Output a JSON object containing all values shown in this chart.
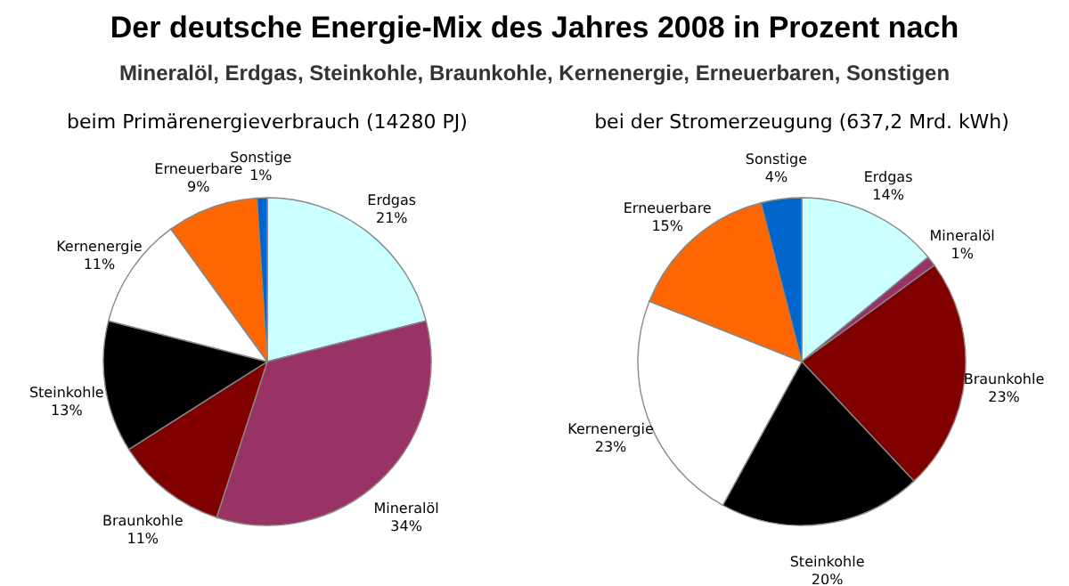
{
  "chart_data": [
    {
      "type": "other",
      "title": "Der deutsche Energie-Mix des Jahres 2008 in Prozent nach",
      "subtitle": "Mineralöl, Erdgas, Steinkohle, Braunkohle, Kernenergie, Erneuerbaren, Sonstigen"
    },
    {
      "type": "pie",
      "title": "beim Primärenergieverbrauch (14280 PJ)",
      "categories": [
        "Erdgas",
        "Mineralöl",
        "Braunkohle",
        "Steinkohle",
        "Kernenergie",
        "Erneuerbare",
        "Sonstige"
      ],
      "values": [
        21,
        34,
        11,
        13,
        11,
        9,
        1
      ],
      "value_labels": [
        "21%",
        "34%",
        "11%",
        "13%",
        "11%",
        "9%",
        "1%"
      ],
      "colors": [
        "#ccffff",
        "#993366",
        "#800000",
        "#000000",
        "#ffffff",
        "#ff6600",
        "#0066cc"
      ]
    },
    {
      "type": "pie",
      "title": "bei der Stromerzeugung (637,2 Mrd. kWh)",
      "categories": [
        "Erdgas",
        "Mineralöl",
        "Braunkohle",
        "Steinkohle",
        "Kernenergie",
        "Erneuerbare",
        "Sonstige"
      ],
      "values": [
        14,
        1,
        23,
        20,
        23,
        15,
        4
      ],
      "value_labels": [
        "14%",
        "1%",
        "23%",
        "20%",
        "23%",
        "15%",
        "4%"
      ],
      "colors": [
        "#ccffff",
        "#993366",
        "#800000",
        "#000000",
        "#ffffff",
        "#ff6600",
        "#0066cc"
      ]
    }
  ]
}
